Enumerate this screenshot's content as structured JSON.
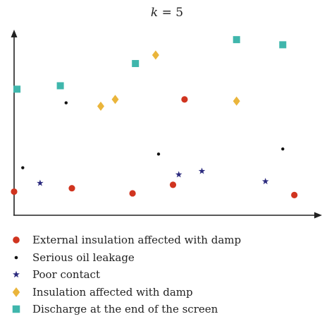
{
  "colors": {
    "external": "#d0341f",
    "oil": "#111111",
    "contact": "#2b2a7e",
    "insulation": "#eab53b",
    "discharge": "#3fb6ac",
    "axis": "#222222"
  },
  "icons": {
    "external": "circle",
    "oil": "small-dot",
    "contact": "star",
    "insulation": "diamond",
    "discharge": "square"
  },
  "chart_data": {
    "type": "scatter",
    "title_var": "k",
    "title_rest": " = 5",
    "xlabel": "",
    "ylabel": "",
    "series": [
      {
        "key": "external",
        "name": "External insulation affected with damp",
        "points": [
          [
            0.0,
            0.13
          ],
          [
            0.2,
            0.15
          ],
          [
            0.41,
            0.12
          ],
          [
            0.55,
            0.17
          ],
          [
            0.59,
            0.67
          ],
          [
            0.97,
            0.11
          ]
        ]
      },
      {
        "key": "oil",
        "name": "Serious oil leakage",
        "points": [
          [
            0.03,
            0.27
          ],
          [
            0.18,
            0.65
          ],
          [
            0.5,
            0.35
          ],
          [
            0.93,
            0.38
          ]
        ]
      },
      {
        "key": "contact",
        "name": "Poor contact",
        "points": [
          [
            0.09,
            0.18
          ],
          [
            0.57,
            0.23
          ],
          [
            0.65,
            0.25
          ],
          [
            0.87,
            0.19
          ]
        ]
      },
      {
        "key": "insulation",
        "name": "Insulation affected with damp",
        "points": [
          [
            0.3,
            0.63
          ],
          [
            0.35,
            0.67
          ],
          [
            0.49,
            0.93
          ],
          [
            0.77,
            0.66
          ]
        ]
      },
      {
        "key": "discharge",
        "name": "Discharge at the end of the screen",
        "points": [
          [
            0.01,
            0.73
          ],
          [
            0.16,
            0.75
          ],
          [
            0.42,
            0.88
          ],
          [
            0.77,
            1.02
          ],
          [
            0.93,
            0.99
          ]
        ]
      }
    ]
  }
}
